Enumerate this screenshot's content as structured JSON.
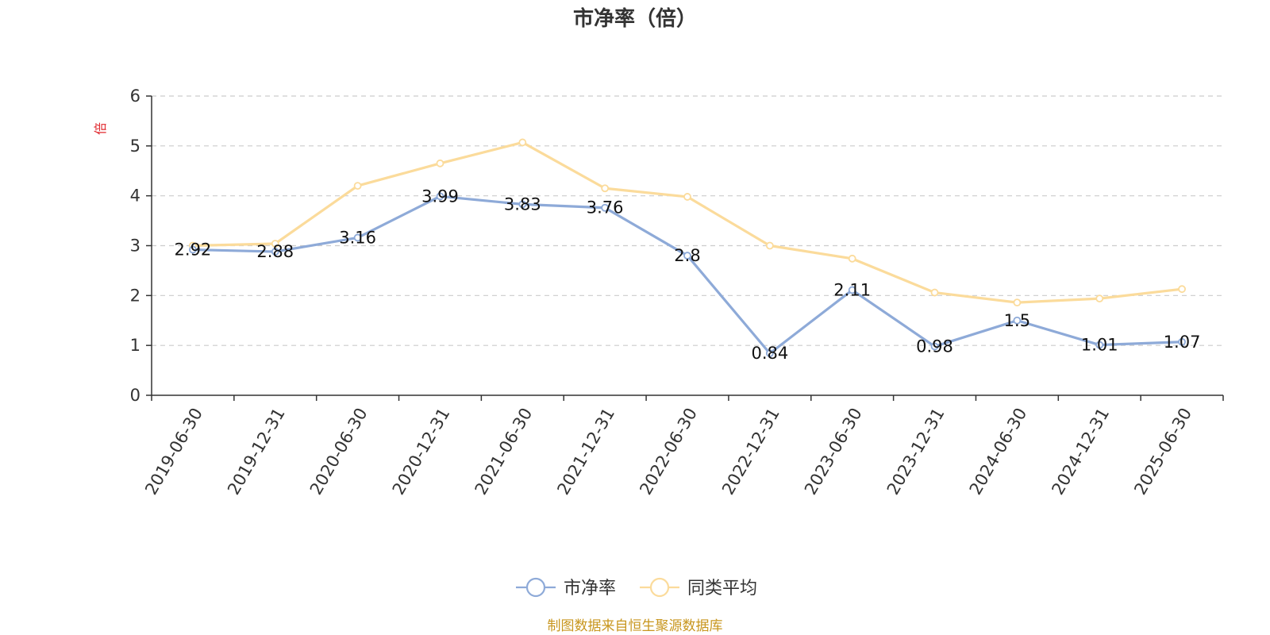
{
  "chart_data": {
    "type": "line",
    "title": "市净率（倍）",
    "ylabel": "倍",
    "xlabel": "",
    "categories": [
      "2019-06-30",
      "2019-12-31",
      "2020-06-30",
      "2020-12-31",
      "2021-06-30",
      "2021-12-31",
      "2022-06-30",
      "2022-12-31",
      "2023-06-30",
      "2023-12-31",
      "2024-06-30",
      "2024-12-31",
      "2025-06-30"
    ],
    "ylim": [
      0,
      6
    ],
    "yticks": [
      0,
      1,
      2,
      3,
      4,
      5,
      6
    ],
    "grid": true,
    "legend_position": "bottom",
    "series": [
      {
        "name": "市净率",
        "color": "#8eaad8",
        "values": [
          2.92,
          2.88,
          3.16,
          3.99,
          3.83,
          3.76,
          2.8,
          0.84,
          2.11,
          0.98,
          1.5,
          1.01,
          1.07
        ],
        "show_labels": true
      },
      {
        "name": "同类平均",
        "color": "#fbdb9b",
        "values": [
          3.0,
          3.04,
          4.2,
          4.65,
          5.07,
          4.15,
          3.98,
          3.0,
          2.74,
          2.06,
          1.86,
          1.94,
          2.13
        ],
        "show_labels": false
      }
    ]
  },
  "source_note": "制图数据来自恒生聚源数据库"
}
